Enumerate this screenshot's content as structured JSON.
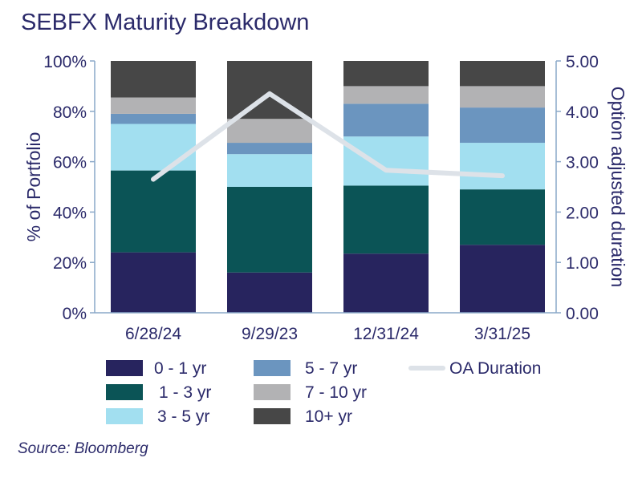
{
  "chart_data": {
    "type": "bar",
    "stacked": true,
    "title": "SEBFX Maturity Breakdown",
    "categories": [
      "6/28/24",
      "9/29/23",
      "12/31/24",
      "3/31/25"
    ],
    "ylabel": "% of Portfolio",
    "y2label": "Option adjusted duration",
    "ylim": [
      0,
      100
    ],
    "y2lim": [
      0,
      5
    ],
    "yticks": [
      "0%",
      "20%",
      "40%",
      "60%",
      "80%",
      "100%"
    ],
    "y2ticks": [
      "0.00",
      "1.00",
      "2.00",
      "3.00",
      "4.00",
      "5.00"
    ],
    "series": [
      {
        "name": "0 - 1 yr",
        "color": "#27245e",
        "values": [
          24,
          16,
          23.5,
          27
        ]
      },
      {
        "name": "1 - 3 yr",
        "color": "#0b5456",
        "values": [
          32.5,
          34,
          27,
          22
        ]
      },
      {
        "name": "3 - 5 yr",
        "color": "#a2dff0",
        "values": [
          18.5,
          13,
          19.5,
          18.5
        ]
      },
      {
        "name": "5 - 7 yr",
        "color": "#6b95bf",
        "values": [
          4,
          4.5,
          13,
          14
        ]
      },
      {
        "name": "7 - 10 yr",
        "color": "#b2b2b4",
        "values": [
          6.5,
          9.5,
          7,
          8.5
        ]
      },
      {
        "name": "10+ yr",
        "color": "#474747",
        "values": [
          14.5,
          23,
          10,
          10
        ]
      }
    ],
    "line_series": {
      "name": "OA Duration",
      "color": "#dde2e8",
      "axis": "right",
      "values": [
        2.65,
        4.35,
        2.83,
        2.72
      ]
    },
    "legend_position": "bottom"
  },
  "source": "Source: Bloomberg"
}
